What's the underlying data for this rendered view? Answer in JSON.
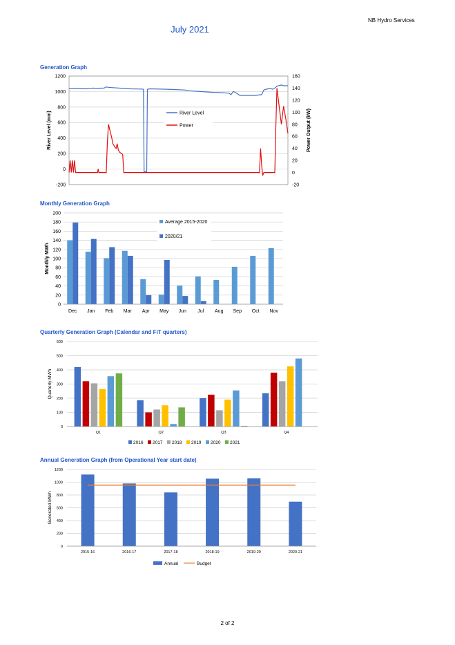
{
  "header": {
    "company": "NB Hydro Services",
    "title": "July 2021"
  },
  "footer": {
    "page": "2 of 2"
  },
  "colors": {
    "title_blue": "#1f56c8",
    "river_level": "#4472c4",
    "power": "#e01010",
    "average": "#5b9bd5",
    "year_2020_21": "#4472c4",
    "q2016": "#4472c4",
    "q2017": "#c00000",
    "q2018": "#a5a5a5",
    "q2019": "#ffc000",
    "q2020": "#5b9bd5",
    "q2021": "#70ad47",
    "annual": "#4472c4",
    "budget": "#ed7d31"
  },
  "sections": {
    "generation": "Generation Graph",
    "monthly": "Monthly Generation Graph",
    "quarterly": "Quarterly Generation Graph (Calendar and FiT quarters)",
    "annual": "Annual Generation Graph (from Operational Year start date)"
  },
  "chart_data": [
    {
      "type": "line",
      "ylabel": "River Level (mm)",
      "y2label": "Power Output (kW)",
      "ylim": [
        -200,
        1200
      ],
      "y2lim": [
        -20,
        160
      ],
      "yticks": [
        -200,
        0,
        200,
        400,
        600,
        800,
        1000,
        1200
      ],
      "y2ticks": [
        -20,
        0,
        20,
        40,
        60,
        80,
        100,
        120,
        140,
        160
      ],
      "grid": true,
      "legend": "center",
      "xlim": [
        0,
        100
      ],
      "series": [
        {
          "name": "River Level",
          "axis": "left",
          "x": [
            0,
            8,
            9,
            10,
            11,
            12,
            16,
            17,
            18,
            20,
            25,
            28,
            33,
            34,
            34.3,
            35.5,
            35.8,
            37,
            45,
            53,
            55,
            60,
            66,
            70,
            73,
            74,
            75,
            76,
            78,
            80,
            85,
            88,
            89,
            90,
            92,
            93,
            94,
            95,
            97,
            98,
            100
          ],
          "y": [
            1040,
            1035,
            1042,
            1038,
            1045,
            1040,
            1045,
            1060,
            1055,
            1050,
            1040,
            1035,
            1032,
            1030,
            -35,
            -35,
            1030,
            1035,
            1030,
            1020,
            1010,
            1000,
            990,
            985,
            980,
            960,
            1000,
            990,
            950,
            950,
            950,
            960,
            1020,
            1030,
            1040,
            1030,
            1045,
            1070,
            1085,
            1075,
            1075
          ]
        },
        {
          "name": "Power",
          "axis": "right",
          "x": [
            0,
            0.5,
            1,
            1.5,
            2,
            2.5,
            3,
            4,
            13,
            13.3,
            13.6,
            17,
            17.5,
            18,
            18.8,
            19.5,
            20,
            21,
            21.5,
            22,
            22.5,
            23,
            24.5,
            25,
            25.5,
            26,
            30,
            35,
            60,
            87,
            87.5,
            88,
            88.5,
            89,
            92,
            94,
            94.5,
            95,
            96,
            97,
            98,
            99,
            100
          ],
          "y": [
            0,
            20,
            0,
            20,
            0,
            20,
            0,
            0,
            0,
            6,
            0,
            0,
            50,
            80,
            68,
            58,
            48,
            42,
            40,
            48,
            38,
            34,
            30,
            0,
            0,
            0,
            0,
            0,
            0,
            0,
            40,
            12,
            -5,
            0,
            0,
            0,
            80,
            140,
            110,
            80,
            110,
            90,
            65
          ]
        }
      ]
    },
    {
      "type": "bar",
      "ylabel": "Monthly MWh",
      "ylim": [
        0,
        200
      ],
      "yticks": [
        0,
        20,
        40,
        60,
        80,
        100,
        120,
        140,
        160,
        180,
        200
      ],
      "grid": true,
      "legend": "top-right",
      "categories": [
        "Dec",
        "Jan",
        "Feb",
        "Mar",
        "Apr",
        "May",
        "Jun",
        "Jul",
        "Aug",
        "Sep",
        "Oct",
        "Nov"
      ],
      "series": [
        {
          "name": "Average 2015-2020",
          "values": [
            140,
            115,
            101,
            117,
            55,
            21,
            41,
            61,
            53,
            82,
            106,
            123
          ]
        },
        {
          "name": "2020/21",
          "values": [
            179,
            143,
            125,
            106,
            20,
            97,
            18,
            7,
            null,
            null,
            null,
            null
          ]
        }
      ]
    },
    {
      "type": "bar",
      "ylabel": "Quarterly MWh",
      "ylim": [
        0,
        600
      ],
      "yticks": [
        0,
        100,
        200,
        300,
        400,
        500,
        600
      ],
      "grid": true,
      "legend": "bottom",
      "categories": [
        "Q1",
        "Q2",
        "Q3",
        "Q4"
      ],
      "series": [
        {
          "name": "2016",
          "values": [
            420,
            185,
            200,
            235
          ]
        },
        {
          "name": "2017",
          "values": [
            320,
            100,
            225,
            380
          ]
        },
        {
          "name": "2018",
          "values": [
            305,
            120,
            115,
            320
          ]
        },
        {
          "name": "2019",
          "values": [
            265,
            150,
            190,
            425
          ]
        },
        {
          "name": "2020",
          "values": [
            355,
            18,
            255,
            480
          ]
        },
        {
          "name": "2021",
          "values": [
            375,
            135,
            5,
            null
          ]
        }
      ]
    },
    {
      "type": "bar",
      "ylabel": "Generated MWh",
      "ylim": [
        0,
        1200
      ],
      "yticks": [
        0,
        200,
        400,
        600,
        800,
        1000,
        1200
      ],
      "grid": true,
      "legend": "bottom",
      "categories": [
        "2015-16",
        "2016-17",
        "2017-18",
        "2018-19",
        "2019-20",
        "2020-21"
      ],
      "series": [
        {
          "name": "Annual",
          "values": [
            1120,
            980,
            840,
            1055,
            1060,
            695
          ]
        },
        {
          "name": "Budget",
          "type": "line",
          "values": [
            955,
            955,
            955,
            955,
            955,
            955
          ]
        }
      ]
    }
  ]
}
